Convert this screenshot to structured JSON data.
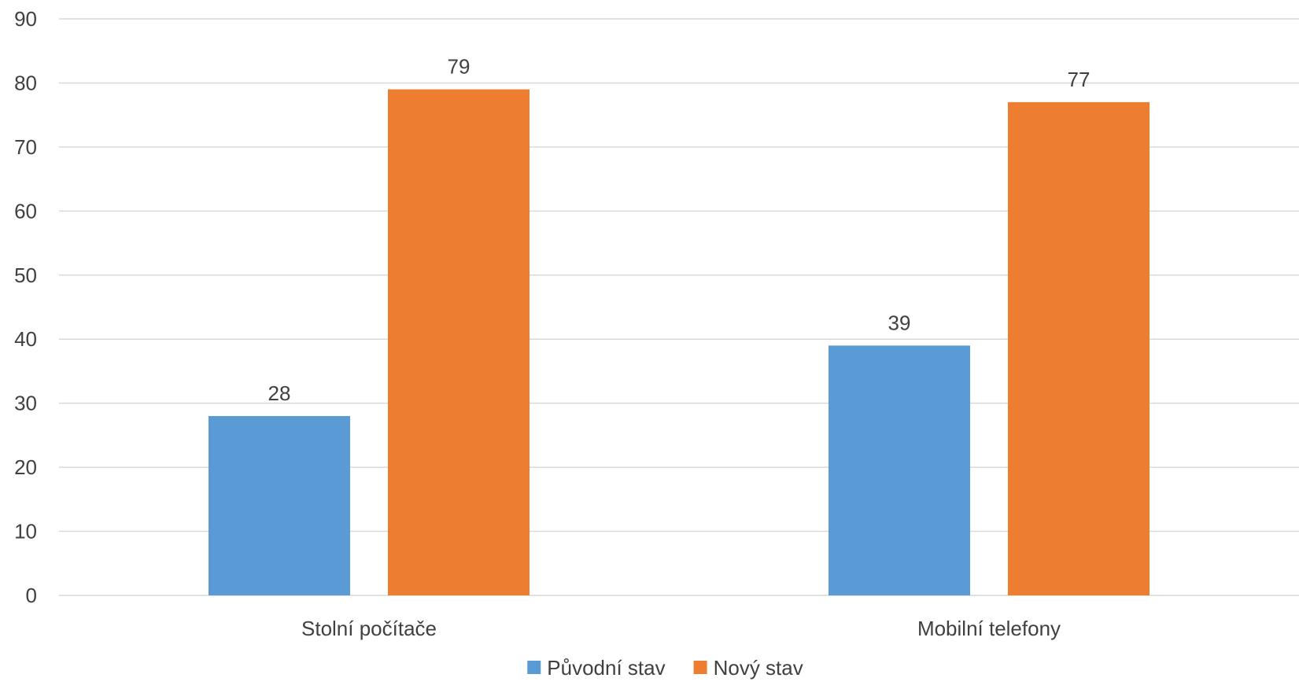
{
  "chart_data": {
    "type": "bar",
    "title": "",
    "xlabel": "",
    "ylabel": "",
    "categories": [
      "Stolní počítače",
      "Mobilní telefony"
    ],
    "series": [
      {
        "name": "Původní stav",
        "color": "#5b9bd5",
        "values": [
          28,
          39
        ]
      },
      {
        "name": "Nový stav",
        "color": "#ed7d31",
        "values": [
          79,
          77
        ]
      }
    ],
    "ylim": [
      0,
      90
    ],
    "yticks": [
      0,
      10,
      20,
      30,
      40,
      50,
      60,
      70,
      80,
      90
    ],
    "grid": true,
    "legend": "bottom",
    "data_labels": true
  }
}
